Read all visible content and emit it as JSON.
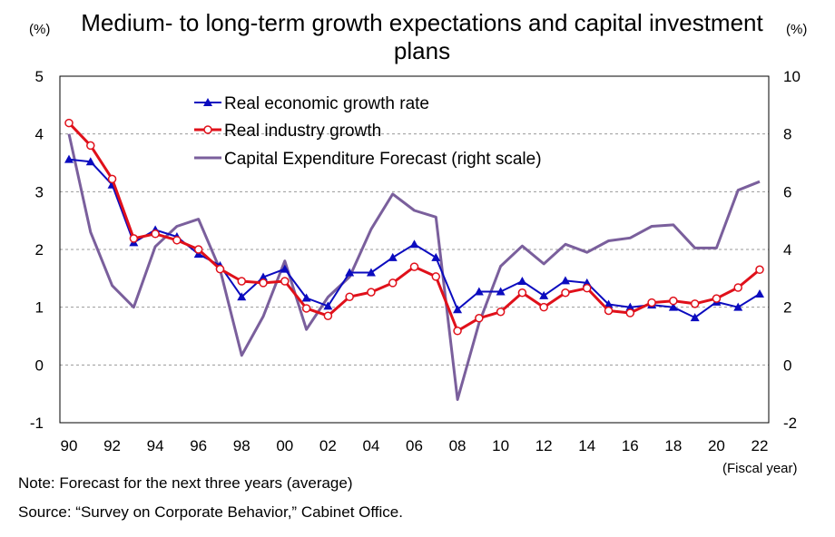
{
  "title": "Medium- to long-term growth expectations and capital investment plans",
  "unit_left": "(%)",
  "unit_right": "(%)",
  "x_unit": "(Fiscal year)",
  "note": "Note: Forecast for the next three years (average)",
  "source": "Source: “Survey on Corporate Behavior,” Cabinet Office.",
  "colors": {
    "growth": "#0b0bbf",
    "industry": "#e0101a",
    "capex": "#7a5f9c",
    "grid": "#9a9a9a"
  },
  "chart_data": {
    "type": "line",
    "title": "Medium- to long-term growth expectations and capital investment plans",
    "x": [
      1990,
      1991,
      1992,
      1993,
      1994,
      1995,
      1996,
      1997,
      1998,
      1999,
      2000,
      2001,
      2002,
      2003,
      2004,
      2005,
      2006,
      2007,
      2008,
      2009,
      2010,
      2011,
      2012,
      2013,
      2014,
      2015,
      2016,
      2017,
      2018,
      2019,
      2020,
      2021,
      2022
    ],
    "x_tick_labels": [
      "90",
      "92",
      "94",
      "96",
      "98",
      "00",
      "02",
      "04",
      "06",
      "08",
      "10",
      "12",
      "14",
      "16",
      "18",
      "20",
      "22"
    ],
    "x_label": "(Fiscal year)",
    "y_left": {
      "label": "(%)",
      "range": [
        -1,
        5
      ],
      "ticks": [
        "5",
        "4",
        "3",
        "2",
        "1",
        "0",
        "-1"
      ]
    },
    "y_right": {
      "label": "(%)",
      "range": [
        -2,
        10
      ],
      "ticks": [
        "10",
        "8",
        "6",
        "4",
        "2",
        "0",
        "-2"
      ]
    },
    "grid": "dashed horizontal",
    "legend_position": "top-left",
    "series": [
      {
        "name": "Real economic growth rate",
        "axis": "left",
        "marker": "triangle",
        "values": [
          3.56,
          3.52,
          3.12,
          2.12,
          2.34,
          2.22,
          1.92,
          1.72,
          1.18,
          1.52,
          1.66,
          1.16,
          1.02,
          1.6,
          1.6,
          1.86,
          2.09,
          1.86,
          0.96,
          1.27,
          1.27,
          1.45,
          1.2,
          1.46,
          1.42,
          1.05,
          1.0,
          1.04,
          1.0,
          0.82,
          1.09,
          1.0,
          1.23
        ]
      },
      {
        "name": "Real industry growth",
        "axis": "left",
        "marker": "circle",
        "values": [
          4.19,
          3.8,
          3.22,
          2.19,
          2.27,
          2.16,
          2.0,
          1.66,
          1.45,
          1.42,
          1.45,
          0.98,
          0.85,
          1.18,
          1.26,
          1.42,
          1.7,
          1.53,
          0.59,
          0.81,
          0.92,
          1.25,
          1.0,
          1.25,
          1.33,
          0.94,
          0.9,
          1.08,
          1.11,
          1.06,
          1.15,
          1.34,
          1.65
        ]
      },
      {
        "name": "Capital Expenditure Forecast (right scale)",
        "axis": "right",
        "marker": "none",
        "values": [
          8.0,
          4.6,
          2.75,
          2.0,
          4.1,
          4.8,
          5.05,
          3.3,
          0.33,
          1.68,
          3.6,
          1.23,
          2.35,
          3.05,
          4.7,
          5.92,
          5.35,
          5.12,
          -1.2,
          1.45,
          3.42,
          4.12,
          3.5,
          4.18,
          3.9,
          4.3,
          4.4,
          4.8,
          4.85,
          4.05,
          4.05,
          6.05,
          6.35
        ]
      }
    ]
  }
}
